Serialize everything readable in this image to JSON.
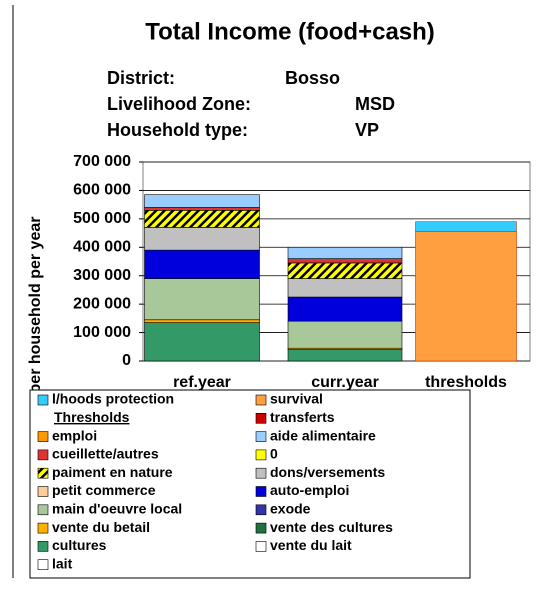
{
  "chart_data": {
    "type": "stacked_bar",
    "title": "Total Income (food+cash)",
    "info": [
      [
        "District:",
        "Bosso"
      ],
      [
        "Livelihood Zone:",
        "MSD"
      ],
      [
        "Household type:",
        "VP"
      ]
    ],
    "ylabel": "per household per year",
    "categories": [
      "ref.year",
      "curr.year",
      "thresholds"
    ],
    "ylim": [
      0,
      700000
    ],
    "yticks": [
      0,
      {
        "value": 100000,
        "label": "100 000"
      },
      {
        "value": 200000,
        "label": "200 000"
      },
      {
        "value": 300000,
        "label": "300 000"
      },
      {
        "value": 400000,
        "label": "400 000"
      },
      {
        "value": 500000,
        "label": "500 000"
      },
      {
        "value": 600000,
        "label": "600 000"
      },
      {
        "value": 700000,
        "label": "700 000"
      }
    ],
    "grid": true,
    "legend_header": "Thresholds",
    "series": [
      {
        "name": "l/hoods protection",
        "color": "#33ccff",
        "values": [
          0,
          0,
          35000
        ]
      },
      {
        "name": "survival",
        "color": "#ff9f40",
        "values": [
          0,
          0,
          455000
        ]
      },
      {
        "name": "transferts",
        "color": "#cc0000",
        "values": [
          0,
          0,
          0
        ]
      },
      {
        "name": "emploi",
        "color": "#ff9900",
        "values": [
          0,
          0,
          0
        ]
      },
      {
        "name": "aide alimentaire",
        "color": "#99ccff",
        "values": [
          45000,
          40000,
          0
        ]
      },
      {
        "name": "cueillette/autres",
        "color": "#dd3333",
        "values": [
          10000,
          15000,
          0
        ]
      },
      {
        "name": "0",
        "color": "#ffff00",
        "values": [
          0,
          0,
          0
        ]
      },
      {
        "name": "paiment en nature",
        "color": "#ffff00",
        "pattern": "hatch",
        "values": [
          60000,
          55000,
          0
        ]
      },
      {
        "name": "dons/versements",
        "color": "#c0c0c0",
        "values": [
          80000,
          65000,
          0
        ]
      },
      {
        "name": "petit commerce",
        "color": "#ffcc99",
        "values": [
          0,
          0,
          0
        ]
      },
      {
        "name": "auto-emploi",
        "color": "#0000dd",
        "values": [
          100000,
          85000,
          0
        ]
      },
      {
        "name": "main d'oeuvre local",
        "color": "#a9c89a",
        "values": [
          145000,
          95000,
          0
        ]
      },
      {
        "name": "exode",
        "color": "#3333aa",
        "values": [
          0,
          0,
          0
        ]
      },
      {
        "name": "vente du betail",
        "color": "#ffb000",
        "values": [
          10000,
          5000,
          0
        ]
      },
      {
        "name": "vente des cultures",
        "color": "#207040",
        "values": [
          0,
          0,
          0
        ]
      },
      {
        "name": "cultures",
        "color": "#339966",
        "values": [
          135000,
          40000,
          0
        ]
      },
      {
        "name": "vente du lait",
        "color": "#ffffff",
        "values": [
          0,
          0,
          0
        ]
      },
      {
        "name": "lait",
        "color": "#ffffff",
        "values": [
          0,
          0,
          0
        ]
      }
    ]
  }
}
